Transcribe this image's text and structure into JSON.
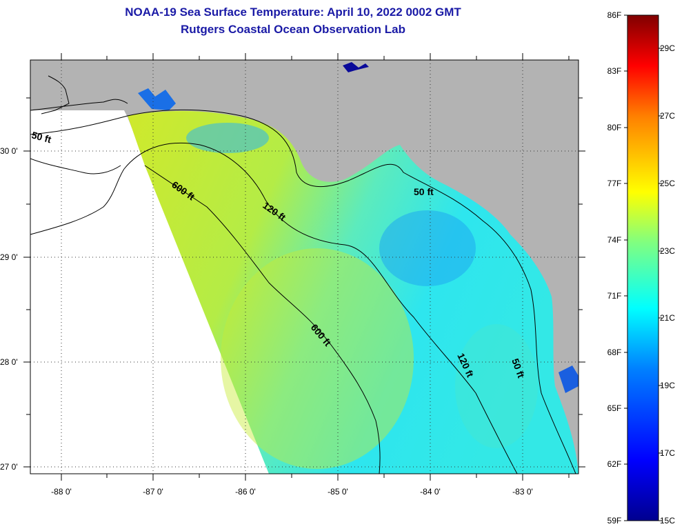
{
  "header": {
    "title_line1": "NOAA-19 Sea Surface Temperature:  April 10, 2022 0002 GMT",
    "title_line2": "Rutgers Coastal Ocean Observation Lab"
  },
  "map": {
    "lon_labels": [
      "-88 0'",
      "-87 0'",
      "-86 0'",
      "-85 0'",
      "-84 0'",
      "-83 0'"
    ],
    "lat_labels": [
      "30 0'",
      "29 0'",
      "28 0'",
      "27 0'"
    ],
    "contour_labels": [
      "50 ft",
      "600 ft",
      "120 ft",
      "50 ft",
      "600 ft",
      "120 ft",
      "50 ft"
    ],
    "colors": {
      "land": "#b3b3b3",
      "no_data": "#ffffff",
      "water_warm": "#d7ec2a",
      "water_cool": "#2ee8ee",
      "water_cold": "#1e8cf0"
    }
  },
  "colorbar": {
    "fahrenheit": [
      "86F",
      "83F",
      "80F",
      "77F",
      "74F",
      "71F",
      "68F",
      "65F",
      "62F",
      "59F"
    ],
    "celsius": [
      "29C",
      "27C",
      "25C",
      "23C",
      "21C",
      "19C",
      "17C",
      "15C"
    ]
  }
}
